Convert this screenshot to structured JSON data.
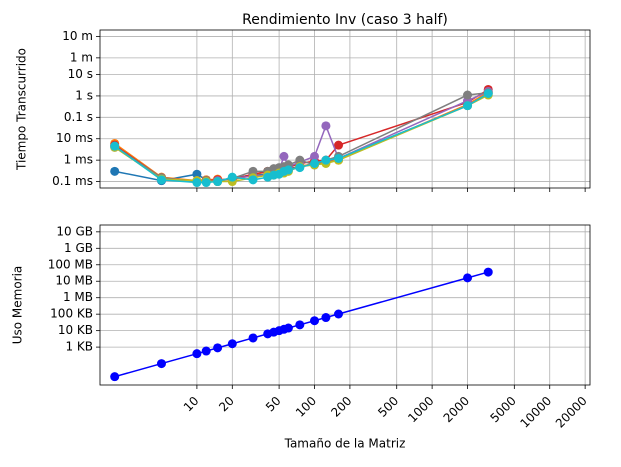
{
  "chart_data": [
    {
      "type": "line",
      "title": "Rendimiento Inv (caso 3 half)",
      "ylabel": "Tiempo Transcurrido",
      "x": [
        2,
        5,
        10,
        12,
        15,
        20,
        30,
        40,
        45,
        50,
        55,
        60,
        75,
        100,
        125,
        160,
        2000,
        3000
      ],
      "series": [
        {
          "color": "#1f77b4",
          "values": [
            0.0003,
            0.00011,
            0.00022,
            0.00012,
            0.0001,
            0.00015,
            0.0002,
            0.00022,
            0.00025,
            0.0003,
            0.00035,
            0.0004,
            0.0005,
            0.0007,
            0.0009,
            0.0012,
            0.35,
            1.3
          ]
        },
        {
          "color": "#ff7f0e",
          "values": [
            0.006,
            0.00016,
            0.00011,
            0.00012,
            0.00013,
            0.00012,
            0.0002,
            0.0003,
            0.00025,
            0.00028,
            0.0003,
            0.00035,
            0.0005,
            0.0007,
            0.0008,
            0.001,
            0.4,
            1.5
          ]
        },
        {
          "color": "#d62728",
          "values": [
            0.005,
            0.00015,
            0.0001,
            0.00011,
            0.00012,
            0.00013,
            0.00022,
            0.0003,
            0.00035,
            0.0004,
            0.0004,
            0.00045,
            0.0007,
            0.0009,
            0.001,
            0.005,
            0.5,
            2
          ]
        },
        {
          "color": "#9467bd",
          "values": [
            0.004,
            0.00014,
            0.0001,
            0.0001,
            0.00011,
            0.00014,
            0.00018,
            0.0002,
            0.0003,
            0.00035,
            0.0015,
            0.0005,
            0.0008,
            0.0015,
            0.04,
            0.0012,
            0.6,
            1.6
          ]
        },
        {
          "color": "#7f7f7f",
          "values": [
            0.0045,
            0.00015,
            0.0001,
            0.00011,
            0.0001,
            0.00014,
            0.0003,
            0.0003,
            0.0004,
            0.00045,
            0.0005,
            0.0006,
            0.001,
            0.0006,
            0.001,
            0.0015,
            1.1,
            1.4
          ]
        },
        {
          "color": "#bcbd22",
          "values": [
            0.004,
            0.00013,
            0.00011,
            0.0001,
            0.0001,
            0.0001,
            0.00015,
            0.0002,
            0.0002,
            0.00025,
            0.00025,
            0.0003,
            0.0005,
            0.0006,
            0.0007,
            0.001,
            0.35,
            1.1
          ]
        },
        {
          "color": "#17becf",
          "values": [
            0.0045,
            0.00012,
            9e-05,
            9e-05,
            0.0001,
            0.00016,
            0.00012,
            0.00016,
            0.0002,
            0.00022,
            0.0003,
            0.00035,
            0.00045,
            0.0007,
            0.001,
            0.0012,
            0.35,
            1.3
          ]
        }
      ],
      "xlim": [
        1.5,
        22000
      ],
      "xscale": "log",
      "ylim": [
        5e-05,
        1200
      ],
      "yscale": "log",
      "yticks": [
        {
          "value": 600,
          "label": "10 m"
        },
        {
          "value": 60,
          "label": "1 m"
        },
        {
          "value": 10,
          "label": "10 s"
        },
        {
          "value": 1,
          "label": "1 s"
        },
        {
          "value": 0.1,
          "label": "0.1 s"
        },
        {
          "value": 0.01,
          "label": "10 ms"
        },
        {
          "value": 0.001,
          "label": "1 ms"
        },
        {
          "value": 0.0001,
          "label": "0.1 ms"
        }
      ],
      "grid": true
    },
    {
      "type": "line",
      "ylabel": "Uso Memoria",
      "xlabel": "Tamaño de la Matriz",
      "x": [
        2,
        5,
        10,
        12,
        15,
        20,
        30,
        40,
        45,
        50,
        55,
        60,
        75,
        100,
        125,
        160,
        2000,
        3000
      ],
      "series": [
        {
          "color": "#0000ff",
          "values": [
            16,
            100,
            400,
            576,
            900,
            1600,
            3600,
            6400,
            8100,
            10000,
            12100,
            14400,
            22500,
            40000,
            62500,
            102400,
            16000000,
            36000000
          ]
        }
      ],
      "xlim": [
        1.5,
        22000
      ],
      "xscale": "log",
      "ylim": [
        5,
        26000000000.0
      ],
      "yscale": "log",
      "xticks": [
        10,
        20,
        50,
        100,
        200,
        500,
        1000,
        2000,
        5000,
        10000,
        20000
      ],
      "yticks": [
        {
          "value": 10000000000.0,
          "label": "10 GB"
        },
        {
          "value": 1000000000.0,
          "label": "1 GB"
        },
        {
          "value": 100000000.0,
          "label": "100 MB"
        },
        {
          "value": 10000000.0,
          "label": "10 MB"
        },
        {
          "value": 1000000.0,
          "label": "1 MB"
        },
        {
          "value": 100000.0,
          "label": "100 KB"
        },
        {
          "value": 10000.0,
          "label": "10 KB"
        },
        {
          "value": 1000.0,
          "label": "1 KB"
        }
      ],
      "grid": true
    }
  ]
}
